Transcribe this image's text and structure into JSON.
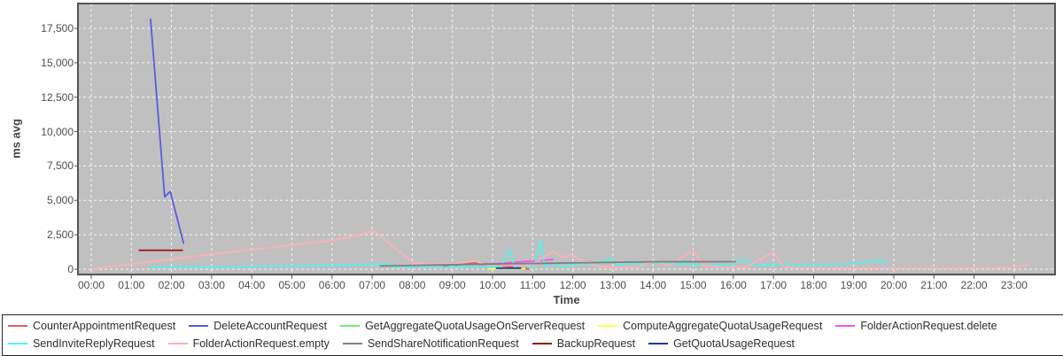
{
  "chart_data": {
    "type": "line",
    "title": "",
    "xlabel": "Time",
    "ylabel": "ms avg",
    "grid": true,
    "legend_position": "bottom",
    "plot_background": "#c0c0c0",
    "gridline_color": "#f5f5f5",
    "axis_border_color": "#545454",
    "tick_label_color": "#4d4d4d",
    "xlim_hours": [
      -0.33,
      24.0
    ],
    "ylim": [
      0,
      19300
    ],
    "x_tick_labels": [
      "00:00",
      "01:00",
      "02:00",
      "03:00",
      "04:00",
      "05:00",
      "06:00",
      "07:00",
      "08:00",
      "09:00",
      "10:00",
      "11:00",
      "12:00",
      "13:00",
      "14:00",
      "15:00",
      "16:00",
      "17:00",
      "18:00",
      "19:00",
      "20:00",
      "21:00",
      "22:00",
      "23:00"
    ],
    "y_ticks": [
      0,
      2500,
      5000,
      7500,
      10000,
      12500,
      15000,
      17500
    ],
    "y_tick_labels": [
      "0",
      "2,500",
      "5,000",
      "7,500",
      "10,000",
      "12,500",
      "15,000",
      "17,500"
    ],
    "legend_rows": [
      [
        0,
        1,
        2,
        3,
        4
      ],
      [
        5,
        6,
        7,
        8,
        9
      ]
    ],
    "series": [
      {
        "name": "CounterAppointmentRequest",
        "color": "#e06060",
        "points_hour_ms": [
          [
            8.7,
            140
          ],
          [
            9.6,
            480
          ],
          [
            10.9,
            15
          ]
        ]
      },
      {
        "name": "DeleteAccountRequest",
        "color": "#5b5be0",
        "points_hour_ms": [
          [
            1.48,
            18150
          ],
          [
            1.83,
            5250
          ],
          [
            1.97,
            5650
          ],
          [
            2.3,
            1900
          ]
        ]
      },
      {
        "name": "GetAggregateQuotaUsageOnServerRequest",
        "color": "#7be87b",
        "points_hour_ms": [
          [
            9.9,
            50
          ],
          [
            10.8,
            50
          ]
        ]
      },
      {
        "name": "ComputeAggregateQuotaUsageRequest",
        "color": "#ffff55",
        "points_hour_ms": [
          [
            9.9,
            30
          ],
          [
            10.8,
            30
          ]
        ]
      },
      {
        "name": "FolderActionRequest.delete",
        "color": "#f055f0",
        "points_hour_ms": [
          [
            9.7,
            330
          ],
          [
            11.5,
            700
          ]
        ]
      },
      {
        "name": "SendInviteReplyRequest",
        "color": "#55f0f0",
        "points_hour_ms": [
          [
            1.48,
            130
          ],
          [
            3.0,
            170
          ],
          [
            5.0,
            240
          ],
          [
            6.5,
            300
          ],
          [
            7.2,
            360
          ],
          [
            7.45,
            390
          ],
          [
            7.6,
            120
          ],
          [
            7.75,
            260
          ],
          [
            7.95,
            110
          ],
          [
            8.1,
            270
          ],
          [
            8.3,
            130
          ],
          [
            8.55,
            230
          ],
          [
            8.8,
            110
          ],
          [
            9.0,
            230
          ],
          [
            9.2,
            130
          ],
          [
            9.5,
            260
          ],
          [
            9.75,
            160
          ],
          [
            10.0,
            230
          ],
          [
            10.2,
            160
          ],
          [
            10.42,
            1450
          ],
          [
            10.55,
            170
          ],
          [
            10.7,
            330
          ],
          [
            10.9,
            240
          ],
          [
            11.05,
            300
          ],
          [
            11.2,
            2060
          ],
          [
            11.3,
            160
          ],
          [
            11.45,
            430
          ],
          [
            11.6,
            280
          ],
          [
            11.8,
            160
          ],
          [
            12.0,
            330
          ],
          [
            12.25,
            430
          ],
          [
            12.5,
            280
          ],
          [
            12.75,
            500
          ],
          [
            12.95,
            820
          ],
          [
            13.1,
            280
          ],
          [
            13.4,
            430
          ],
          [
            13.7,
            360
          ],
          [
            13.95,
            500
          ],
          [
            14.2,
            430
          ],
          [
            14.5,
            390
          ],
          [
            14.8,
            430
          ],
          [
            15.05,
            340
          ],
          [
            15.35,
            230
          ],
          [
            15.7,
            300
          ],
          [
            16.0,
            360
          ],
          [
            16.15,
            700
          ],
          [
            16.35,
            640
          ],
          [
            16.55,
            280
          ],
          [
            16.8,
            330
          ],
          [
            17.05,
            300
          ],
          [
            17.3,
            410
          ],
          [
            17.55,
            240
          ],
          [
            17.8,
            310
          ],
          [
            18.2,
            300
          ],
          [
            18.7,
            360
          ],
          [
            19.2,
            460
          ],
          [
            19.55,
            620
          ],
          [
            19.7,
            640
          ],
          [
            19.85,
            340
          ]
        ]
      },
      {
        "name": "FolderActionRequest.empty",
        "color": "#ffb0b8",
        "points_hour_ms": [
          [
            0.05,
            20
          ],
          [
            1.0,
            380
          ],
          [
            2.0,
            740
          ],
          [
            3.0,
            1080
          ],
          [
            4.0,
            1420
          ],
          [
            5.0,
            1760
          ],
          [
            6.0,
            2080
          ],
          [
            6.5,
            2400
          ],
          [
            7.05,
            2800
          ],
          [
            7.5,
            1700
          ],
          [
            8.05,
            430
          ],
          [
            8.5,
            400
          ],
          [
            9.0,
            380
          ],
          [
            9.55,
            600
          ],
          [
            9.8,
            380
          ],
          [
            10.3,
            300
          ],
          [
            11.0,
            330
          ],
          [
            11.5,
            1320
          ],
          [
            11.75,
            850
          ],
          [
            11.95,
            1050
          ],
          [
            12.3,
            500
          ],
          [
            12.6,
            220
          ],
          [
            13.0,
            140
          ],
          [
            13.6,
            140
          ],
          [
            14.05,
            620
          ],
          [
            14.4,
            250
          ],
          [
            15.0,
            1380
          ],
          [
            15.25,
            260
          ],
          [
            15.7,
            140
          ],
          [
            16.3,
            110
          ],
          [
            17.0,
            1250
          ],
          [
            17.25,
            160
          ],
          [
            17.6,
            90
          ],
          [
            18.5,
            75
          ],
          [
            19.5,
            70
          ],
          [
            20.5,
            65
          ],
          [
            21.5,
            65
          ],
          [
            22.5,
            75
          ],
          [
            23.0,
            140
          ],
          [
            23.35,
            330
          ]
        ]
      },
      {
        "name": "SendShareNotificationRequest",
        "color": "#808080",
        "points_hour_ms": [
          [
            7.2,
            230
          ],
          [
            8.5,
            300
          ],
          [
            10.0,
            380
          ],
          [
            12.0,
            460
          ],
          [
            14.0,
            540
          ],
          [
            16.05,
            545
          ]
        ]
      },
      {
        "name": "BackupRequest",
        "color": "#991111",
        "points_hour_ms": [
          [
            1.2,
            1380
          ],
          [
            2.27,
            1380
          ]
        ]
      },
      {
        "name": "GetQuotaUsageRequest",
        "color": "#2233aa",
        "points_hour_ms": [
          [
            10.1,
            70
          ],
          [
            10.7,
            70
          ]
        ]
      }
    ]
  }
}
